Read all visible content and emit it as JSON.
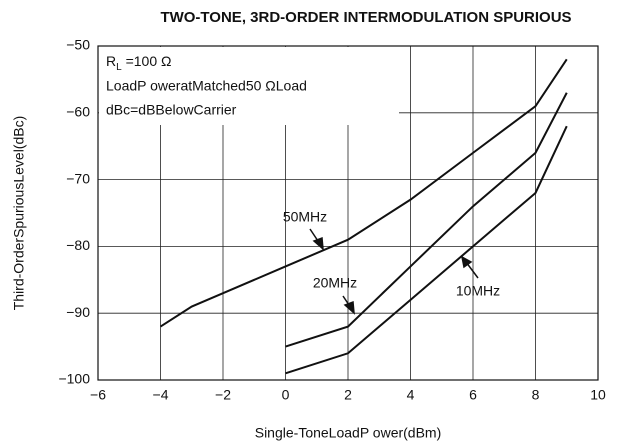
{
  "chart_data": {
    "type": "line",
    "title": "TWO-TONE, 3RD-ORDER INTERMODULATION SPURIOUS",
    "xlabel": "Single-ToneLoadP ower(dBm)",
    "ylabel": "Third-OrderSpuriousLevel(dBc)",
    "notes": {
      "r": "R",
      "sub": "L",
      "rest": " =100  Ω",
      "line2": "LoadP oweratMatched50  ΩLoad",
      "line3": "dBc=dBBelowCarrier"
    },
    "grid": true,
    "xlim": [
      -6,
      10
    ],
    "ylim": [
      -100,
      -50
    ],
    "xticks": [
      {
        "value": -6,
        "label": "−6"
      },
      {
        "value": -4,
        "label": "−4"
      },
      {
        "value": -2,
        "label": "−2"
      },
      0,
      2,
      4,
      6,
      8,
      10
    ],
    "yticks": [
      {
        "value": -100,
        "label": "−100"
      },
      {
        "value": -90,
        "label": "−90"
      },
      {
        "value": -80,
        "label": "−80"
      },
      {
        "value": -70,
        "label": "−70"
      },
      {
        "value": -60,
        "label": "−60"
      },
      {
        "value": -50,
        "label": "−50"
      }
    ],
    "series": [
      {
        "name": "50MHz",
        "color": "#111111",
        "x": [
          -4,
          -3,
          -2,
          0,
          2,
          4,
          6,
          8,
          9
        ],
        "values": [
          -92,
          -89,
          -87,
          -83,
          -79,
          -73,
          -66,
          -59,
          -52
        ]
      },
      {
        "name": "20MHz",
        "color": "#111111",
        "x": [
          0,
          2,
          4,
          6,
          8,
          9
        ],
        "values": [
          -95,
          -92,
          -83,
          -74,
          -66,
          -57
        ]
      },
      {
        "name": "10MHz",
        "color": "#111111",
        "x": [
          0,
          2,
          4,
          6,
          8,
          9
        ],
        "values": [
          -99,
          -96,
          -88,
          -80,
          -72,
          -62
        ]
      }
    ]
  }
}
